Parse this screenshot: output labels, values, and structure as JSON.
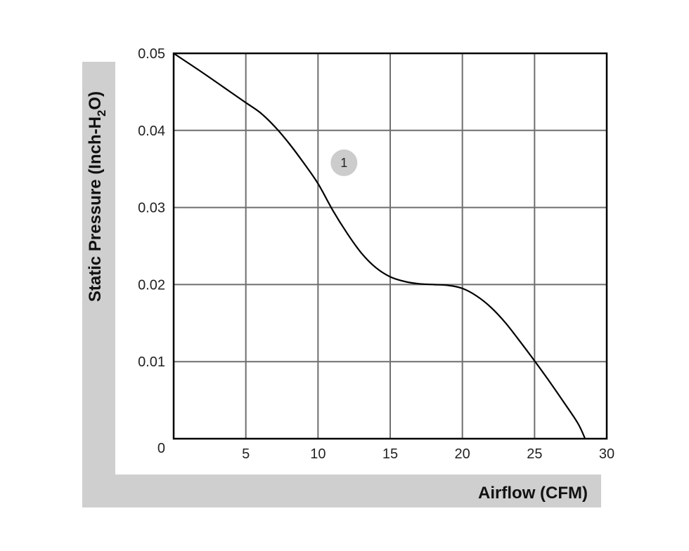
{
  "chart_data": {
    "type": "line",
    "title": "",
    "xlabel": "Airflow (CFM)",
    "ylabel_parts": [
      "Static Pressure (Inch-H",
      "2",
      "O)"
    ],
    "xlim": [
      0,
      30
    ],
    "ylim": [
      0,
      0.05
    ],
    "x_ticks": [
      0,
      5,
      10,
      15,
      20,
      25,
      30
    ],
    "x_tick_labels": [
      "0",
      "5",
      "10",
      "15",
      "20",
      "25",
      "30"
    ],
    "y_ticks": [
      0.01,
      0.02,
      0.03,
      0.04,
      0.05
    ],
    "y_tick_labels": [
      "0.01",
      "0.02",
      "0.03",
      "0.04",
      "0.05"
    ],
    "grid": true,
    "series": [
      {
        "x": [
          0,
          2,
          4,
          5,
          6,
          7,
          8,
          9,
          10,
          11,
          12,
          13,
          14,
          15,
          16,
          17,
          18,
          19,
          20,
          21,
          22,
          23,
          24,
          25,
          26,
          27,
          28,
          28.5
        ],
        "y": [
          0.05,
          0.0475,
          0.0449,
          0.0436,
          0.0423,
          0.0405,
          0.0383,
          0.0358,
          0.0331,
          0.0297,
          0.0267,
          0.0241,
          0.0222,
          0.021,
          0.0204,
          0.0201,
          0.02,
          0.0199,
          0.0195,
          0.0185,
          0.017,
          0.015,
          0.0126,
          0.0101,
          0.0075,
          0.0048,
          0.002,
          0.0
        ]
      }
    ],
    "annotations": [
      {
        "text": "1",
        "x": 11.8,
        "y": 0.0358
      }
    ],
    "colors": {
      "frame_band": "#cfcfcf",
      "grid": "#6e6e6e",
      "line": "#000000",
      "marker": "#cccccc"
    }
  }
}
